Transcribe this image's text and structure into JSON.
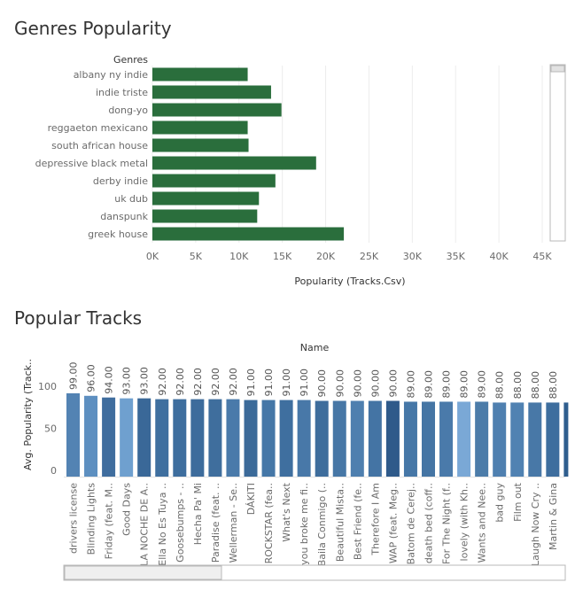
{
  "chart_data": [
    {
      "type": "bar",
      "orientation": "horizontal",
      "title": "Genres Popularity",
      "ylabel": "Genres",
      "xlabel": "Popularity (Tracks.Csv)",
      "categories": [
        "albany ny indie",
        "indie triste",
        "dong-yo",
        "reggaeton mexicano",
        "south african house",
        "depressive black metal",
        "derby indie",
        "uk dub",
        "danspunk",
        "greek house"
      ],
      "values": [
        11000,
        13700,
        14900,
        11000,
        11100,
        18900,
        14200,
        12300,
        12100,
        22100
      ],
      "xticks": [
        "0K",
        "5K",
        "10K",
        "15K",
        "20K",
        "25K",
        "30K",
        "35K",
        "40K",
        "45K"
      ],
      "xlim": [
        0,
        45000
      ],
      "grid": true,
      "colors": {
        "bar": "#2a6e3c",
        "grid": "#ececec"
      }
    },
    {
      "type": "bar",
      "orientation": "vertical",
      "title": "Popular Tracks",
      "xlabel": "Name",
      "ylabel": "Avg. Popularity (Track..",
      "categories": [
        "drivers license",
        "Blinding Lights",
        "Friday (feat. M..",
        "Good Days",
        "LA NOCHE DE A..",
        "Ella No Es Tuya ..",
        "Goosebumps - ..",
        "Hecha Pa' Mi",
        "Paradise (feat. ..",
        "Wellerman - Se..",
        "DÁKITI",
        "ROCKSTAR (fea..",
        "What's Next",
        "you broke me fi..",
        "Baila Conmigo (..",
        "Beautiful Mista..",
        "Best Friend (fe..",
        "Therefore I Am",
        "WAP (feat. Meg..",
        "Batom de Cerej..",
        "death bed (coff..",
        "For The Night (f..",
        "lovely (with Kh..",
        "Wants and Nee..",
        "bad guy",
        "Film out",
        "Laugh Now Cry ..",
        "Martin & Gina",
        ""
      ],
      "values": [
        99,
        96,
        94,
        93,
        93,
        92,
        92,
        92,
        92,
        92,
        91,
        91,
        91,
        91,
        90,
        90,
        90,
        90,
        90,
        89,
        89,
        89,
        89,
        89,
        88,
        88,
        88,
        88,
        88
      ],
      "value_labels": [
        "99.00",
        "96.00",
        "94.00",
        "93.00",
        "93.00",
        "92.00",
        "92.00",
        "92.00",
        "92.00",
        "92.00",
        "91.00",
        "91.00",
        "91.00",
        "91.00",
        "90.00",
        "90.00",
        "90.00",
        "90.00",
        "90.00",
        "89.00",
        "89.00",
        "89.00",
        "89.00",
        "89.00",
        "88.00",
        "88.00",
        "88.00",
        "88.00",
        ""
      ],
      "yticks": [
        "0",
        "50",
        "100"
      ],
      "ylim": [
        0,
        120
      ],
      "colors": [
        "#5383b3",
        "#5d8fc0",
        "#3f6d9e",
        "#6fa0cf",
        "#3a6898",
        "#3f6f9f",
        "#3e6e9e",
        "#3d6c9c",
        "#3f6e9d",
        "#4a7aaa",
        "#3b6a99",
        "#4577a7",
        "#3f6f9f",
        "#4878a8",
        "#3e6d9c",
        "#4777a6",
        "#4e7faf",
        "#4474a4",
        "#2f5a8a",
        "#4677a7",
        "#4575a4",
        "#4a7aaa",
        "#7aa8d6",
        "#4c7ca9",
        "#4f80b0",
        "#5082b2",
        "#4878a7",
        "#3e6e9e",
        "#2f5e8e"
      ]
    }
  ]
}
